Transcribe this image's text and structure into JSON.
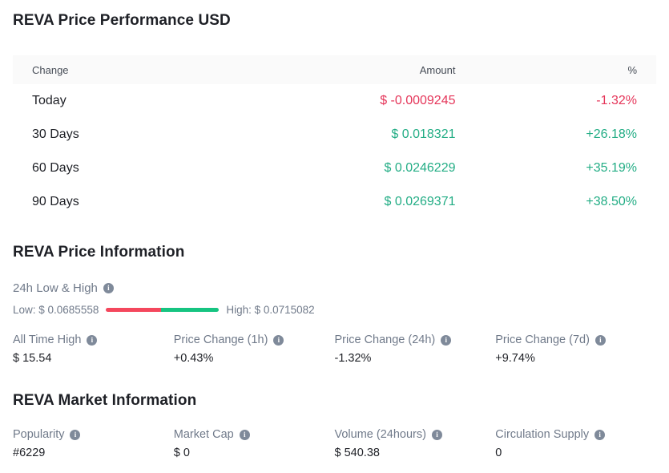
{
  "colors": {
    "positive": "#23ad85",
    "negative": "#e5365a",
    "bar_red": "#f4475d",
    "bar_green": "#16c481"
  },
  "performance": {
    "title": "REVA Price Performance USD",
    "table": {
      "headers": [
        "Change",
        "Amount",
        "%"
      ],
      "rows": [
        {
          "change": "Today",
          "amount": "$ -0.0009245",
          "percent": "-1.32%",
          "trend": "down"
        },
        {
          "change": "30 Days",
          "amount": "$ 0.018321",
          "percent": "+26.18%",
          "trend": "up"
        },
        {
          "change": "60 Days",
          "amount": "$ 0.0246229",
          "percent": "+35.19%",
          "trend": "up"
        },
        {
          "change": "90 Days",
          "amount": "$ 0.0269371",
          "percent": "+38.50%",
          "trend": "up"
        }
      ]
    }
  },
  "price_info": {
    "title": "REVA Price Information",
    "low_high": {
      "label": "24h Low & High",
      "low_label": "Low: $ 0.0685558",
      "high_label": "High: $ 0.0715082",
      "low_fraction": 0.484
    },
    "stats": [
      {
        "label": "All Time High",
        "value": "$ 15.54",
        "trend": "neutral"
      },
      {
        "label": "Price Change (1h)",
        "value": "+0.43%",
        "trend": "up"
      },
      {
        "label": "Price Change (24h)",
        "value": "-1.32%",
        "trend": "down"
      },
      {
        "label": "Price Change (7d)",
        "value": "+9.74%",
        "trend": "up"
      }
    ]
  },
  "market_info": {
    "title": "REVA Market Information",
    "stats": [
      {
        "label": "Popularity",
        "value": "#6229"
      },
      {
        "label": "Market Cap",
        "value": "$ 0"
      },
      {
        "label": "Volume (24hours)",
        "value": "$ 540.38"
      },
      {
        "label": "Circulation Supply",
        "value": "0"
      }
    ]
  }
}
